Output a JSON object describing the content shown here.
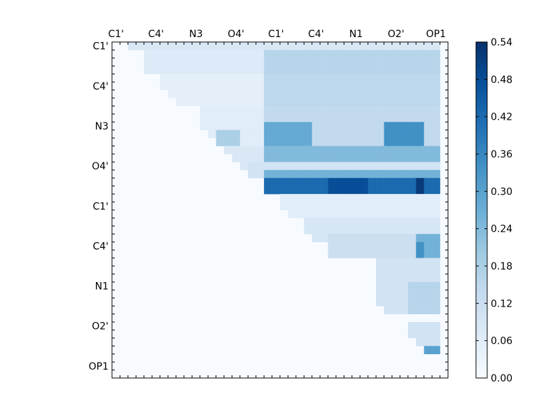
{
  "chart_data": {
    "type": "heatmap",
    "title": "",
    "xlabel": "",
    "ylabel": "",
    "x_tick_labels": [
      "C1'",
      "C4'",
      "N3",
      "O4'",
      "C1'",
      "C4'",
      "N1",
      "O2'",
      "OP1"
    ],
    "y_tick_labels": [
      "C1'",
      "C4'",
      "N3",
      "O4'",
      "C1'",
      "C4'",
      "N1",
      "O2'",
      "OP1"
    ],
    "tick_step": 5,
    "grid": false,
    "colormap": {
      "name": "Blues",
      "stops": [
        "#f7fbff",
        "#deebf7",
        "#c6dbef",
        "#9ecae1",
        "#6baed6",
        "#4292c6",
        "#2171b5",
        "#08519c",
        "#08306b"
      ]
    },
    "colorbar": {
      "range": [
        0.0,
        0.54
      ],
      "tick_labels": [
        "0.00",
        "0.06",
        "0.12",
        "0.18",
        "0.24",
        "0.30",
        "0.36",
        "0.42",
        "0.48",
        "0.54"
      ]
    },
    "matrix_size": 42,
    "value_levels": {
      "none": 0.0,
      "very_low": 0.03,
      "low": 0.09,
      "medium_low": 0.15,
      "medium": 0.22,
      "medium_high": 0.28,
      "high": 0.34,
      "very_high": 0.42,
      "max": 0.52
    },
    "regions": [
      {
        "rows": [
          0,
          0
        ],
        "cols": [
          2,
          40
        ],
        "value": 0.08
      },
      {
        "rows": [
          1,
          3
        ],
        "cols": [
          4,
          40
        ],
        "value": 0.07
      },
      {
        "rows": [
          1,
          3
        ],
        "cols": [
          19,
          40
        ],
        "value": 0.16
      },
      {
        "rows": [
          4,
          7
        ],
        "cols": [
          6,
          40
        ],
        "value": 0.05
      },
      {
        "rows": [
          4,
          7
        ],
        "cols": [
          19,
          40
        ],
        "value": 0.15
      },
      {
        "rows": [
          8,
          12
        ],
        "cols": [
          11,
          40
        ],
        "value": 0.06
      },
      {
        "rows": [
          8,
          12
        ],
        "cols": [
          19,
          40
        ],
        "value": 0.14
      },
      {
        "rows": [
          10,
          12
        ],
        "cols": [
          19,
          24
        ],
        "value": 0.28
      },
      {
        "rows": [
          10,
          12
        ],
        "cols": [
          34,
          38
        ],
        "value": 0.34
      },
      {
        "rows": [
          11,
          12
        ],
        "cols": [
          13,
          15
        ],
        "value": 0.18
      },
      {
        "rows": [
          13,
          15
        ],
        "cols": [
          14,
          40
        ],
        "value": 0.08
      },
      {
        "rows": [
          13,
          14
        ],
        "cols": [
          19,
          40
        ],
        "value": 0.24
      },
      {
        "rows": [
          15,
          16
        ],
        "cols": [
          17,
          40
        ],
        "value": 0.1
      },
      {
        "rows": [
          16,
          17
        ],
        "cols": [
          19,
          40
        ],
        "value": 0.26
      },
      {
        "rows": [
          17,
          18
        ],
        "cols": [
          19,
          40
        ],
        "value": 0.42
      },
      {
        "rows": [
          17,
          18
        ],
        "cols": [
          27,
          31
        ],
        "value": 0.48
      },
      {
        "rows": [
          17,
          18
        ],
        "cols": [
          38,
          38
        ],
        "value": 0.52
      },
      {
        "rows": [
          19,
          21
        ],
        "cols": [
          21,
          40
        ],
        "value": 0.06
      },
      {
        "rows": [
          22,
          24
        ],
        "cols": [
          24,
          40
        ],
        "value": 0.09
      },
      {
        "rows": [
          24,
          26
        ],
        "cols": [
          27,
          40
        ],
        "value": 0.12
      },
      {
        "rows": [
          24,
          30
        ],
        "cols": [
          38,
          40
        ],
        "value": 0.26
      },
      {
        "rows": [
          25,
          30
        ],
        "cols": [
          38,
          38
        ],
        "value": 0.34
      },
      {
        "rows": [
          27,
          33
        ],
        "cols": [
          33,
          40
        ],
        "value": 0.1
      },
      {
        "rows": [
          30,
          33
        ],
        "cols": [
          37,
          40
        ],
        "value": 0.16
      },
      {
        "rows": [
          35,
          37
        ],
        "cols": [
          37,
          40
        ],
        "value": 0.1
      },
      {
        "rows": [
          37,
          37
        ],
        "cols": [
          37,
          37
        ],
        "value": 0.34
      },
      {
        "rows": [
          38,
          38
        ],
        "cols": [
          39,
          40
        ],
        "value": 0.3
      }
    ]
  }
}
